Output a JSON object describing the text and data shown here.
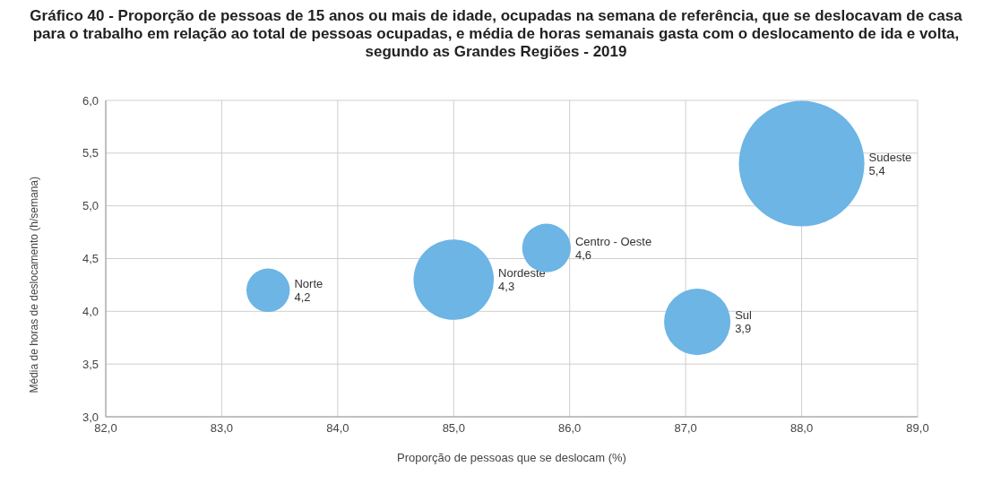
{
  "chart_data": {
    "type": "bubble",
    "title": "Gráfico 40 - Proporção de pessoas de 15 anos ou mais de idade, ocupadas na semana de referência, que se deslocavam de casa para o trabalho em relação ao total de pessoas ocupadas, e média de horas semanais gasta com o deslocamento de ida e volta, segundo as Grandes Regiões - 2019",
    "xlabel": "Proporção de pessoas que se deslocam (%)",
    "ylabel": "Média de horas de deslocamento (h/semana)",
    "xlim": [
      82,
      89
    ],
    "xticks": [
      {
        "value": 82,
        "label": "82,0"
      },
      {
        "value": 83,
        "label": "83,0"
      },
      {
        "value": 84,
        "label": "84,0"
      },
      {
        "value": 85,
        "label": "85,0"
      },
      {
        "value": 86,
        "label": "86,0"
      },
      {
        "value": 87,
        "label": "87,0"
      },
      {
        "value": 88,
        "label": "88,0"
      },
      {
        "value": 89,
        "label": "89,0"
      }
    ],
    "ylim": [
      3,
      6
    ],
    "yticks": [
      {
        "value": 3,
        "label": "3,0"
      },
      {
        "value": 3.5,
        "label": "3,5"
      },
      {
        "value": 4,
        "label": "4,0"
      },
      {
        "value": 4.5,
        "label": "4,5"
      },
      {
        "value": 5,
        "label": "5,0"
      },
      {
        "value": 5.5,
        "label": "5,5"
      },
      {
        "value": 6,
        "label": "6,0"
      }
    ],
    "grid": true,
    "legend": false,
    "series": [
      {
        "name": "Norte",
        "color": "#6cb5e5",
        "x": [
          83.4
        ],
        "values": [
          4.2
        ],
        "sizes": [
          0.12
        ],
        "value_labels": [
          "4,2"
        ]
      },
      {
        "name": "Nordeste",
        "color": "#6cb5e5",
        "x": [
          85.0
        ],
        "values": [
          4.3
        ],
        "sizes": [
          0.41
        ],
        "value_labels": [
          "4,3"
        ]
      },
      {
        "name": "Centro - Oeste",
        "color": "#6cb5e5",
        "x": [
          85.8
        ],
        "values": [
          4.6
        ],
        "sizes": [
          0.15
        ],
        "value_labels": [
          "4,6"
        ]
      },
      {
        "name": "Sul",
        "color": "#6cb5e5",
        "x": [
          87.1
        ],
        "values": [
          3.9
        ],
        "sizes": [
          0.28
        ],
        "value_labels": [
          "3,9"
        ]
      },
      {
        "name": "Sudeste",
        "color": "#6cb5e5",
        "x": [
          88.0
        ],
        "values": [
          5.4
        ],
        "sizes": [
          1
        ],
        "value_labels": [
          "5,4"
        ]
      }
    ]
  }
}
